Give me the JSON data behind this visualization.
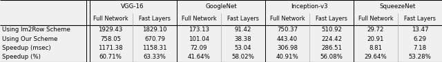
{
  "headers_top": [
    "VGG-16",
    "GoogleNet",
    "Inception-v3",
    "SqueezeNet"
  ],
  "headers_sub": [
    "Full Network",
    "Fast Layers",
    "Full Network",
    "Fast Layers",
    "Full Network",
    "Fast Layers",
    "Full Network",
    "Fast Layers"
  ],
  "row_labels": [
    "Using Im2Row Scheme",
    "Using Our Scheme",
    "Speedup (msec)",
    "Speedup (%)"
  ],
  "rows": [
    [
      "1929.43",
      "1829.10",
      "173.13",
      "91.42",
      "750.37",
      "510.92",
      "29.72",
      "13.47"
    ],
    [
      "758.05",
      "670.79",
      "101.04",
      "38.38",
      "443.40",
      "224.42",
      "20.91",
      "6.29"
    ],
    [
      "1171.38",
      "1158.31",
      "72.09",
      "53.04",
      "306.98",
      "286.51",
      "8.81",
      "7.18"
    ],
    [
      "60.71%",
      "63.33%",
      "41.64%",
      "58.02%",
      "40.91%",
      "56.08%",
      "29.64%",
      "53.28%"
    ]
  ],
  "figsize": [
    6.4,
    0.91
  ],
  "dpi": 100,
  "font_size": 6.2,
  "bg_color": "#f0f0f0",
  "text_color": "#000000"
}
